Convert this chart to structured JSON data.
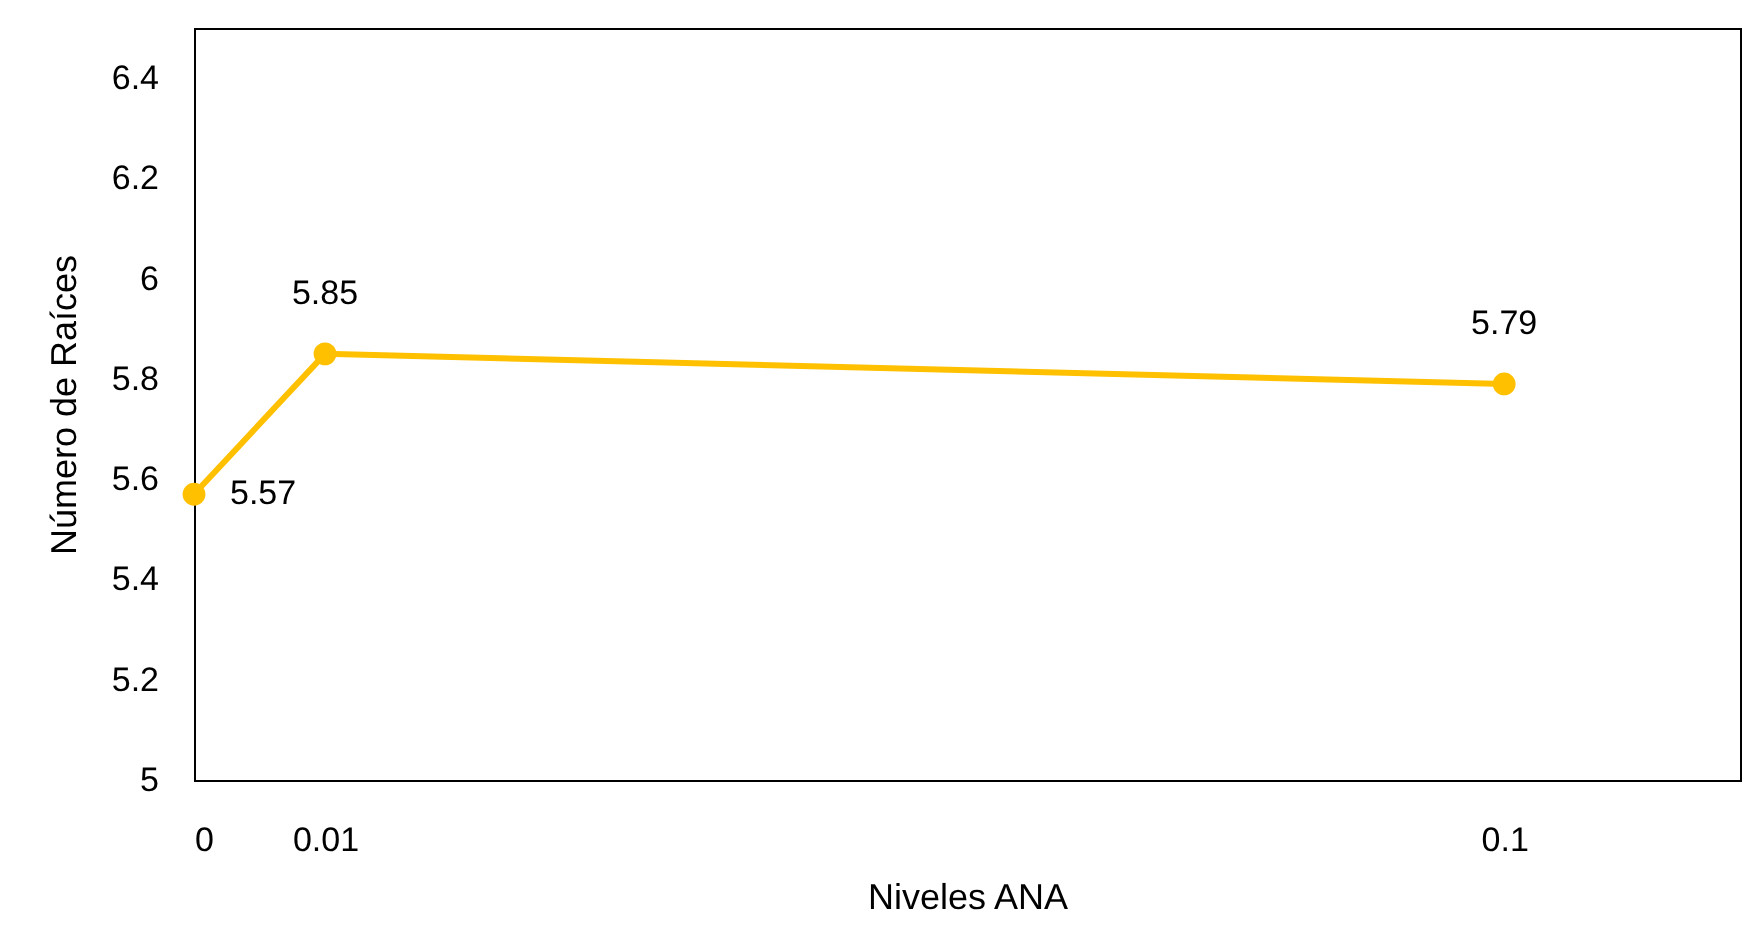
{
  "chart_data": {
    "type": "line",
    "xlabel": "Niveles ANA",
    "ylabel": "Número de Raíces",
    "x": [
      0,
      0.01,
      0.1
    ],
    "series": [
      {
        "color": "#ffc000",
        "values": [
          5.57,
          5.85,
          5.79
        ]
      }
    ],
    "xlim": [
      0,
      0.118
    ],
    "xticks": [
      0,
      0.01,
      0.1
    ],
    "ylim": [
      5,
      6.5
    ],
    "yticks": [
      5,
      5.2,
      5.4,
      5.6,
      5.8,
      6,
      6.2,
      6.4
    ],
    "data_labels": true,
    "marker": "circle",
    "line_style": "solid",
    "grid": false
  }
}
